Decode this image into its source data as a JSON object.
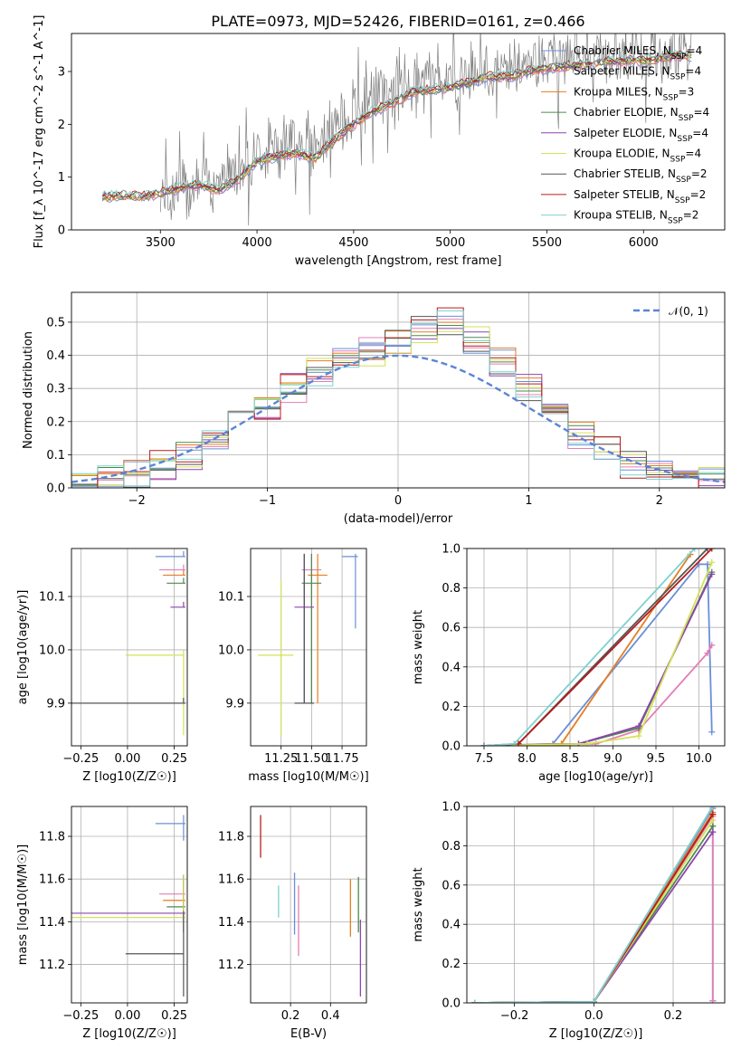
{
  "figure": {
    "title": "PLATE=0973, MJD=52426, FIBERID=0161, z=0.466"
  },
  "series_styles": [
    {
      "name": "Chabrier MILES, N$_{SSP}$=4",
      "color": "#6a8fd8"
    },
    {
      "name": "Salpeter MILES, N$_{SSP}$=4",
      "color": "#e27fb5"
    },
    {
      "name": "Kroupa MILES, N$_{SSP}$=3",
      "color": "#e67e22"
    },
    {
      "name": "Chabrier ELODIE, N$_{SSP}$=4",
      "color": "#4d8a4d"
    },
    {
      "name": "Salpeter ELODIE, N$_{SSP}$=4",
      "color": "#8e44ad"
    },
    {
      "name": "Kroupa ELODIE, N$_{SSP}$=4",
      "color": "#d4e157"
    },
    {
      "name": "Chabrier STELIB, N$_{SSP}$=2",
      "color": "#555555"
    },
    {
      "name": "Salpeter STELIB, N$_{SSP}$=2",
      "color": "#b71c1c"
    },
    {
      "name": "Kroupa STELIB, N$_{SSP}$=2",
      "color": "#7fd1d1"
    }
  ],
  "chart_data": [
    {
      "id": "spectrum",
      "type": "line",
      "title": "PLATE=0973, MJD=52426, FIBERID=0161, z=0.466",
      "xlabel": "wavelength [Angstrom, rest frame]",
      "ylabel": "Flux [f_λ 10^-17 erg cm^-2 s^-1 A^-1]",
      "xlim": [
        3040,
        6420
      ],
      "ylim": [
        0,
        3.72
      ],
      "xticks": [
        3500,
        4000,
        4500,
        5000,
        5500,
        6000
      ],
      "yticks": [
        0,
        1,
        2,
        3
      ],
      "grid": false,
      "legend_position": "right",
      "observed": {
        "name": "data",
        "color": "#808080",
        "x": [
          3200,
          3500,
          3600,
          3700,
          3800,
          3900,
          4000,
          4100,
          4200,
          4300,
          4400,
          4500,
          4600,
          4700,
          4800,
          4900,
          5000,
          5100,
          5200,
          5300,
          5400,
          5500,
          5600,
          5700,
          5800,
          5900,
          6000,
          6100,
          6200
        ],
        "y": [
          0.6,
          0.7,
          0.8,
          0.85,
          1.0,
          1.2,
          1.45,
          1.6,
          1.75,
          1.6,
          1.9,
          2.2,
          2.5,
          2.7,
          2.8,
          2.9,
          2.9,
          3.0,
          2.9,
          3.1,
          3.1,
          3.2,
          3.2,
          3.3,
          3.3,
          3.3,
          3.35,
          3.3,
          3.4
        ]
      },
      "model_x": [
        3200,
        3300,
        3400,
        3500,
        3600,
        3700,
        3800,
        3900,
        4000,
        4100,
        4200,
        4300,
        4400,
        4500,
        4600,
        4700,
        4800,
        4900,
        5000,
        5100,
        5200,
        5300,
        5400,
        5500,
        5600,
        5700,
        5800,
        5900,
        6000,
        6100,
        6200
      ],
      "model_y": [
        0.62,
        0.65,
        0.63,
        0.7,
        0.8,
        0.85,
        0.75,
        0.95,
        1.3,
        1.4,
        1.45,
        1.35,
        1.7,
        2.0,
        2.25,
        2.4,
        2.6,
        2.65,
        2.7,
        2.8,
        2.9,
        2.9,
        3.0,
        3.05,
        3.1,
        3.15,
        3.2,
        3.2,
        3.2,
        3.25,
        3.3
      ]
    },
    {
      "id": "residual-histogram",
      "type": "histogram",
      "xlabel": "(data-model)/error",
      "ylabel": "Normed distribution",
      "xlim": [
        -2.5,
        2.5
      ],
      "ylim": [
        0,
        0.59
      ],
      "xticks": [
        -2,
        -1,
        0,
        1,
        2
      ],
      "yticks": [
        0.0,
        0.1,
        0.2,
        0.3,
        0.4,
        0.5
      ],
      "grid": true,
      "legend_position": "top-right",
      "legend": [
        "𝒩(0, 1)"
      ],
      "bin_edges": [
        -2.5,
        -2.3,
        -2.1,
        -1.9,
        -1.7,
        -1.5,
        -1.3,
        -1.1,
        -0.9,
        -0.7,
        -0.5,
        -0.3,
        -0.1,
        0.1,
        0.3,
        0.5,
        0.7,
        0.9,
        1.1,
        1.3,
        1.5,
        1.7,
        1.9,
        2.1,
        2.3,
        2.5
      ],
      "counts": [
        0.02,
        0.03,
        0.04,
        0.07,
        0.1,
        0.14,
        0.19,
        0.25,
        0.3,
        0.35,
        0.38,
        0.41,
        0.44,
        0.48,
        0.5,
        0.45,
        0.38,
        0.3,
        0.22,
        0.16,
        0.11,
        0.07,
        0.05,
        0.04,
        0.03
      ],
      "normal_curve": {
        "mean": 0,
        "sigma": 1
      }
    },
    {
      "id": "age-vs-metallicity",
      "type": "errorbar",
      "xlabel": "Z [log10(Z/Z☉)]",
      "ylabel": "age [log10(age/yr)]",
      "xlim": [
        -0.3,
        0.32
      ],
      "ylim": [
        9.82,
        10.19
      ],
      "xticks": [
        -0.25,
        0.0,
        0.25
      ],
      "yticks": [
        9.9,
        10.0,
        10.1
      ],
      "grid": true,
      "points": [
        {
          "x": 0.3,
          "y": 10.175,
          "xerr": [
            0.3,
            0.3
          ],
          "yerr": [
            10.175,
            10.175
          ]
        },
        {
          "x": 0.3,
          "y": 10.15,
          "xerr": [
            0.3,
            0.3
          ],
          "yerr": [
            10.15,
            10.15
          ]
        },
        {
          "x": 0.3,
          "y": 10.14,
          "xerr": [
            0.3,
            0.3
          ],
          "yerr": [
            10.14,
            10.14
          ]
        },
        {
          "x": 0.3,
          "y": 10.125,
          "xerr": [
            0.3,
            0.3
          ],
          "yerr": [
            10.125,
            10.125
          ]
        },
        {
          "x": 0.3,
          "y": 10.08,
          "xerr": [
            0.3,
            0.3
          ],
          "yerr": [
            10.08,
            10.08
          ]
        },
        {
          "x": 0.3,
          "y": 9.99,
          "xerr": [
            0.3,
            0.3
          ],
          "yerr": [
            9.99,
            9.99
          ]
        },
        {
          "x": 0.3,
          "y": 9.9,
          "xerr": [
            0.3,
            0.3
          ],
          "yerr": [
            9.9,
            9.9
          ]
        }
      ]
    },
    {
      "id": "age-vs-mass",
      "type": "errorbar",
      "xlabel": "mass [log10(M/M☉)]",
      "ylabel": "",
      "xlim": [
        11.0,
        11.95
      ],
      "ylim": [
        9.82,
        10.19
      ],
      "xticks": [
        11.25,
        11.5,
        11.75
      ],
      "yticks": [
        9.9,
        10.0,
        10.1
      ],
      "grid": true,
      "points": [
        {
          "x": 11.86,
          "y": 10.175
        },
        {
          "x": 11.5,
          "y": 10.15
        },
        {
          "x": 11.55,
          "y": 10.14
        },
        {
          "x": 11.5,
          "y": 10.125
        },
        {
          "x": 11.44,
          "y": 10.08
        },
        {
          "x": 11.25,
          "y": 9.99
        },
        {
          "x": 11.44,
          "y": 9.9
        }
      ]
    },
    {
      "id": "cumulative-mass-weight-age",
      "type": "line",
      "xlabel": "age [log10(age/yr)]",
      "ylabel": "mass weight",
      "xlim": [
        7.3,
        10.3
      ],
      "ylim": [
        0.0,
        1.0
      ],
      "xticks": [
        7.5,
        8.0,
        8.5,
        9.0,
        9.5,
        10.0
      ],
      "yticks": [
        0.0,
        0.2,
        0.4,
        0.6,
        0.8,
        1.0
      ],
      "grid": true,
      "series": [
        {
          "x": [
            7.5,
            8.3,
            10.0,
            10.1,
            10.15
          ],
          "y": [
            0,
            0.01,
            0.92,
            0.92,
            0.07
          ]
        },
        {
          "x": [
            7.5,
            8.8,
            9.3,
            10.1,
            10.15
          ],
          "y": [
            0,
            0.01,
            0.08,
            0.47,
            0.51
          ]
        },
        {
          "x": [
            7.5,
            8.4,
            9.9
          ],
          "y": [
            0,
            0.01,
            0.97
          ]
        },
        {
          "x": [
            7.5,
            8.6,
            9.3,
            10.15
          ],
          "y": [
            0,
            0.01,
            0.09,
            0.88
          ]
        },
        {
          "x": [
            7.5,
            8.6,
            9.3,
            10.15
          ],
          "y": [
            0,
            0.01,
            0.1,
            0.87
          ]
        },
        {
          "x": [
            7.5,
            8.7,
            9.3,
            10.15
          ],
          "y": [
            0,
            0.01,
            0.05,
            0.93
          ]
        },
        {
          "x": [
            7.5,
            7.9,
            10.1
          ],
          "y": [
            0,
            0.01,
            1.0
          ]
        },
        {
          "x": [
            7.5,
            7.9,
            10.15
          ],
          "y": [
            0,
            0.01,
            1.0
          ]
        },
        {
          "x": [
            7.5,
            7.85,
            9.95
          ],
          "y": [
            0,
            0.01,
            1.0
          ]
        }
      ]
    },
    {
      "id": "mass-vs-metallicity",
      "type": "errorbar",
      "xlabel": "Z [log10(Z/Z☉)]",
      "ylabel": "mass [log10(M/M☉)]",
      "xlim": [
        -0.3,
        0.32
      ],
      "ylim": [
        11.02,
        11.94
      ],
      "xticks": [
        -0.25,
        0.0,
        0.25
      ],
      "yticks": [
        11.2,
        11.4,
        11.6,
        11.8
      ],
      "grid": true,
      "points": [
        {
          "x": 0.3,
          "y": 11.86
        },
        {
          "x": 0.3,
          "y": 11.53
        },
        {
          "x": 0.3,
          "y": 11.5
        },
        {
          "x": 0.3,
          "y": 11.47
        },
        {
          "x": 0.3,
          "y": 11.44
        },
        {
          "x": 0.3,
          "y": 11.42
        },
        {
          "x": 0.3,
          "y": 11.25
        }
      ]
    },
    {
      "id": "mass-vs-reddening",
      "type": "errorbar",
      "xlabel": "E(B-V)",
      "ylabel": "",
      "xlim": [
        0.0,
        0.58
      ],
      "ylim": [
        11.02,
        11.94
      ],
      "xticks": [
        0.2,
        0.4
      ],
      "yticks": [
        11.2,
        11.4,
        11.6,
        11.8
      ],
      "grid": true,
      "points": [
        {
          "x": 0.05,
          "y": 11.8
        },
        {
          "x": 0.14,
          "y": 11.5
        },
        {
          "x": 0.22,
          "y": 11.5
        },
        {
          "x": 0.24,
          "y": 11.42
        },
        {
          "x": 0.5,
          "y": 11.45
        },
        {
          "x": 0.54,
          "y": 11.48
        },
        {
          "x": 0.55,
          "y": 11.25
        }
      ]
    },
    {
      "id": "cumulative-mass-weight-metallicity",
      "type": "line",
      "xlabel": "Z [log10(Z/Z☉)]",
      "ylabel": "mass weight",
      "xlim": [
        -0.32,
        0.33
      ],
      "ylim": [
        0.0,
        1.0
      ],
      "xticks": [
        -0.2,
        0.0,
        0.2
      ],
      "yticks": [
        0.0,
        0.2,
        0.4,
        0.6,
        0.8,
        1.0
      ],
      "grid": true,
      "series": [
        {
          "x": [
            -0.3,
            0.0,
            0.3,
            0.3
          ],
          "y": [
            0,
            0.005,
            0.99,
            0.01
          ]
        },
        {
          "x": [
            -0.3,
            0.0,
            0.3,
            0.3
          ],
          "y": [
            0,
            0.005,
            0.95,
            0.01
          ]
        },
        {
          "x": [
            -0.3,
            0.0,
            0.3
          ],
          "y": [
            0,
            0.005,
            0.97
          ]
        },
        {
          "x": [
            -0.3,
            0.0,
            0.3
          ],
          "y": [
            0,
            0.005,
            0.9
          ]
        },
        {
          "x": [
            -0.3,
            0.0,
            0.3
          ],
          "y": [
            0,
            0.005,
            0.87
          ]
        },
        {
          "x": [
            -0.3,
            0.0,
            0.3
          ],
          "y": [
            0,
            0.005,
            0.93
          ]
        },
        {
          "x": [
            -0.3,
            0.0,
            0.3
          ],
          "y": [
            0,
            0.005,
            1.0
          ]
        },
        {
          "x": [
            -0.3,
            0.0,
            0.3
          ],
          "y": [
            0,
            0.005,
            0.96
          ]
        },
        {
          "x": [
            -0.3,
            0.0,
            0.3
          ],
          "y": [
            0,
            0.005,
            1.0
          ]
        }
      ]
    }
  ]
}
